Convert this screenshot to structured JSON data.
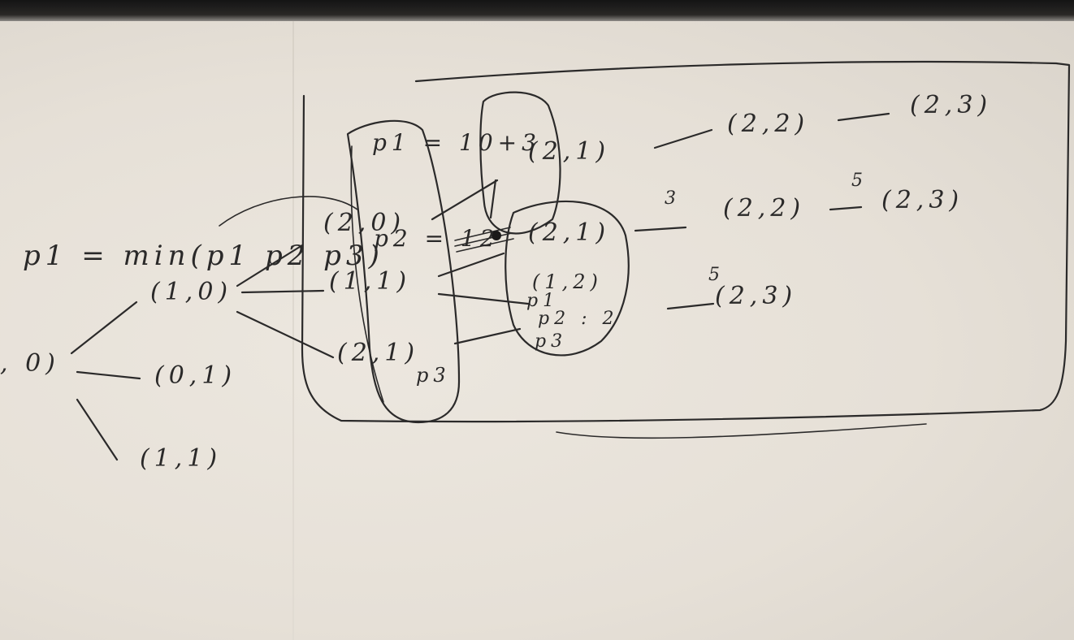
{
  "photo": {
    "description_label": "Handwritten sketch on paper",
    "ink_color": "#2b2a2a",
    "paper_color": "#e9e4dc"
  },
  "formula": {
    "text": "p1 = min(p1 p2 p3)"
  },
  "tree": {
    "root": "(1,0)",
    "root_visible": ", 0)",
    "level1": [
      "(1,0)",
      "(0,1)",
      "(1,1)"
    ],
    "level2": [
      "(2,0)",
      "(1,1)",
      "(2,1)"
    ],
    "level3": [
      "(2,1)",
      "(2,1)",
      "(1,2)"
    ],
    "level4": [
      "(2,2)",
      "(2,2)",
      "(2,3)"
    ],
    "level5": [
      "(2,3)",
      "(2,3)"
    ]
  },
  "labels": {
    "p1": "p1 = 10+3",
    "p2": "p2 = 12",
    "p3": "p3",
    "p1_small": "p1",
    "p2_small": "p2 : 2",
    "p3_small": "p3"
  },
  "edge_weights": [
    "3",
    "5",
    "5"
  ]
}
